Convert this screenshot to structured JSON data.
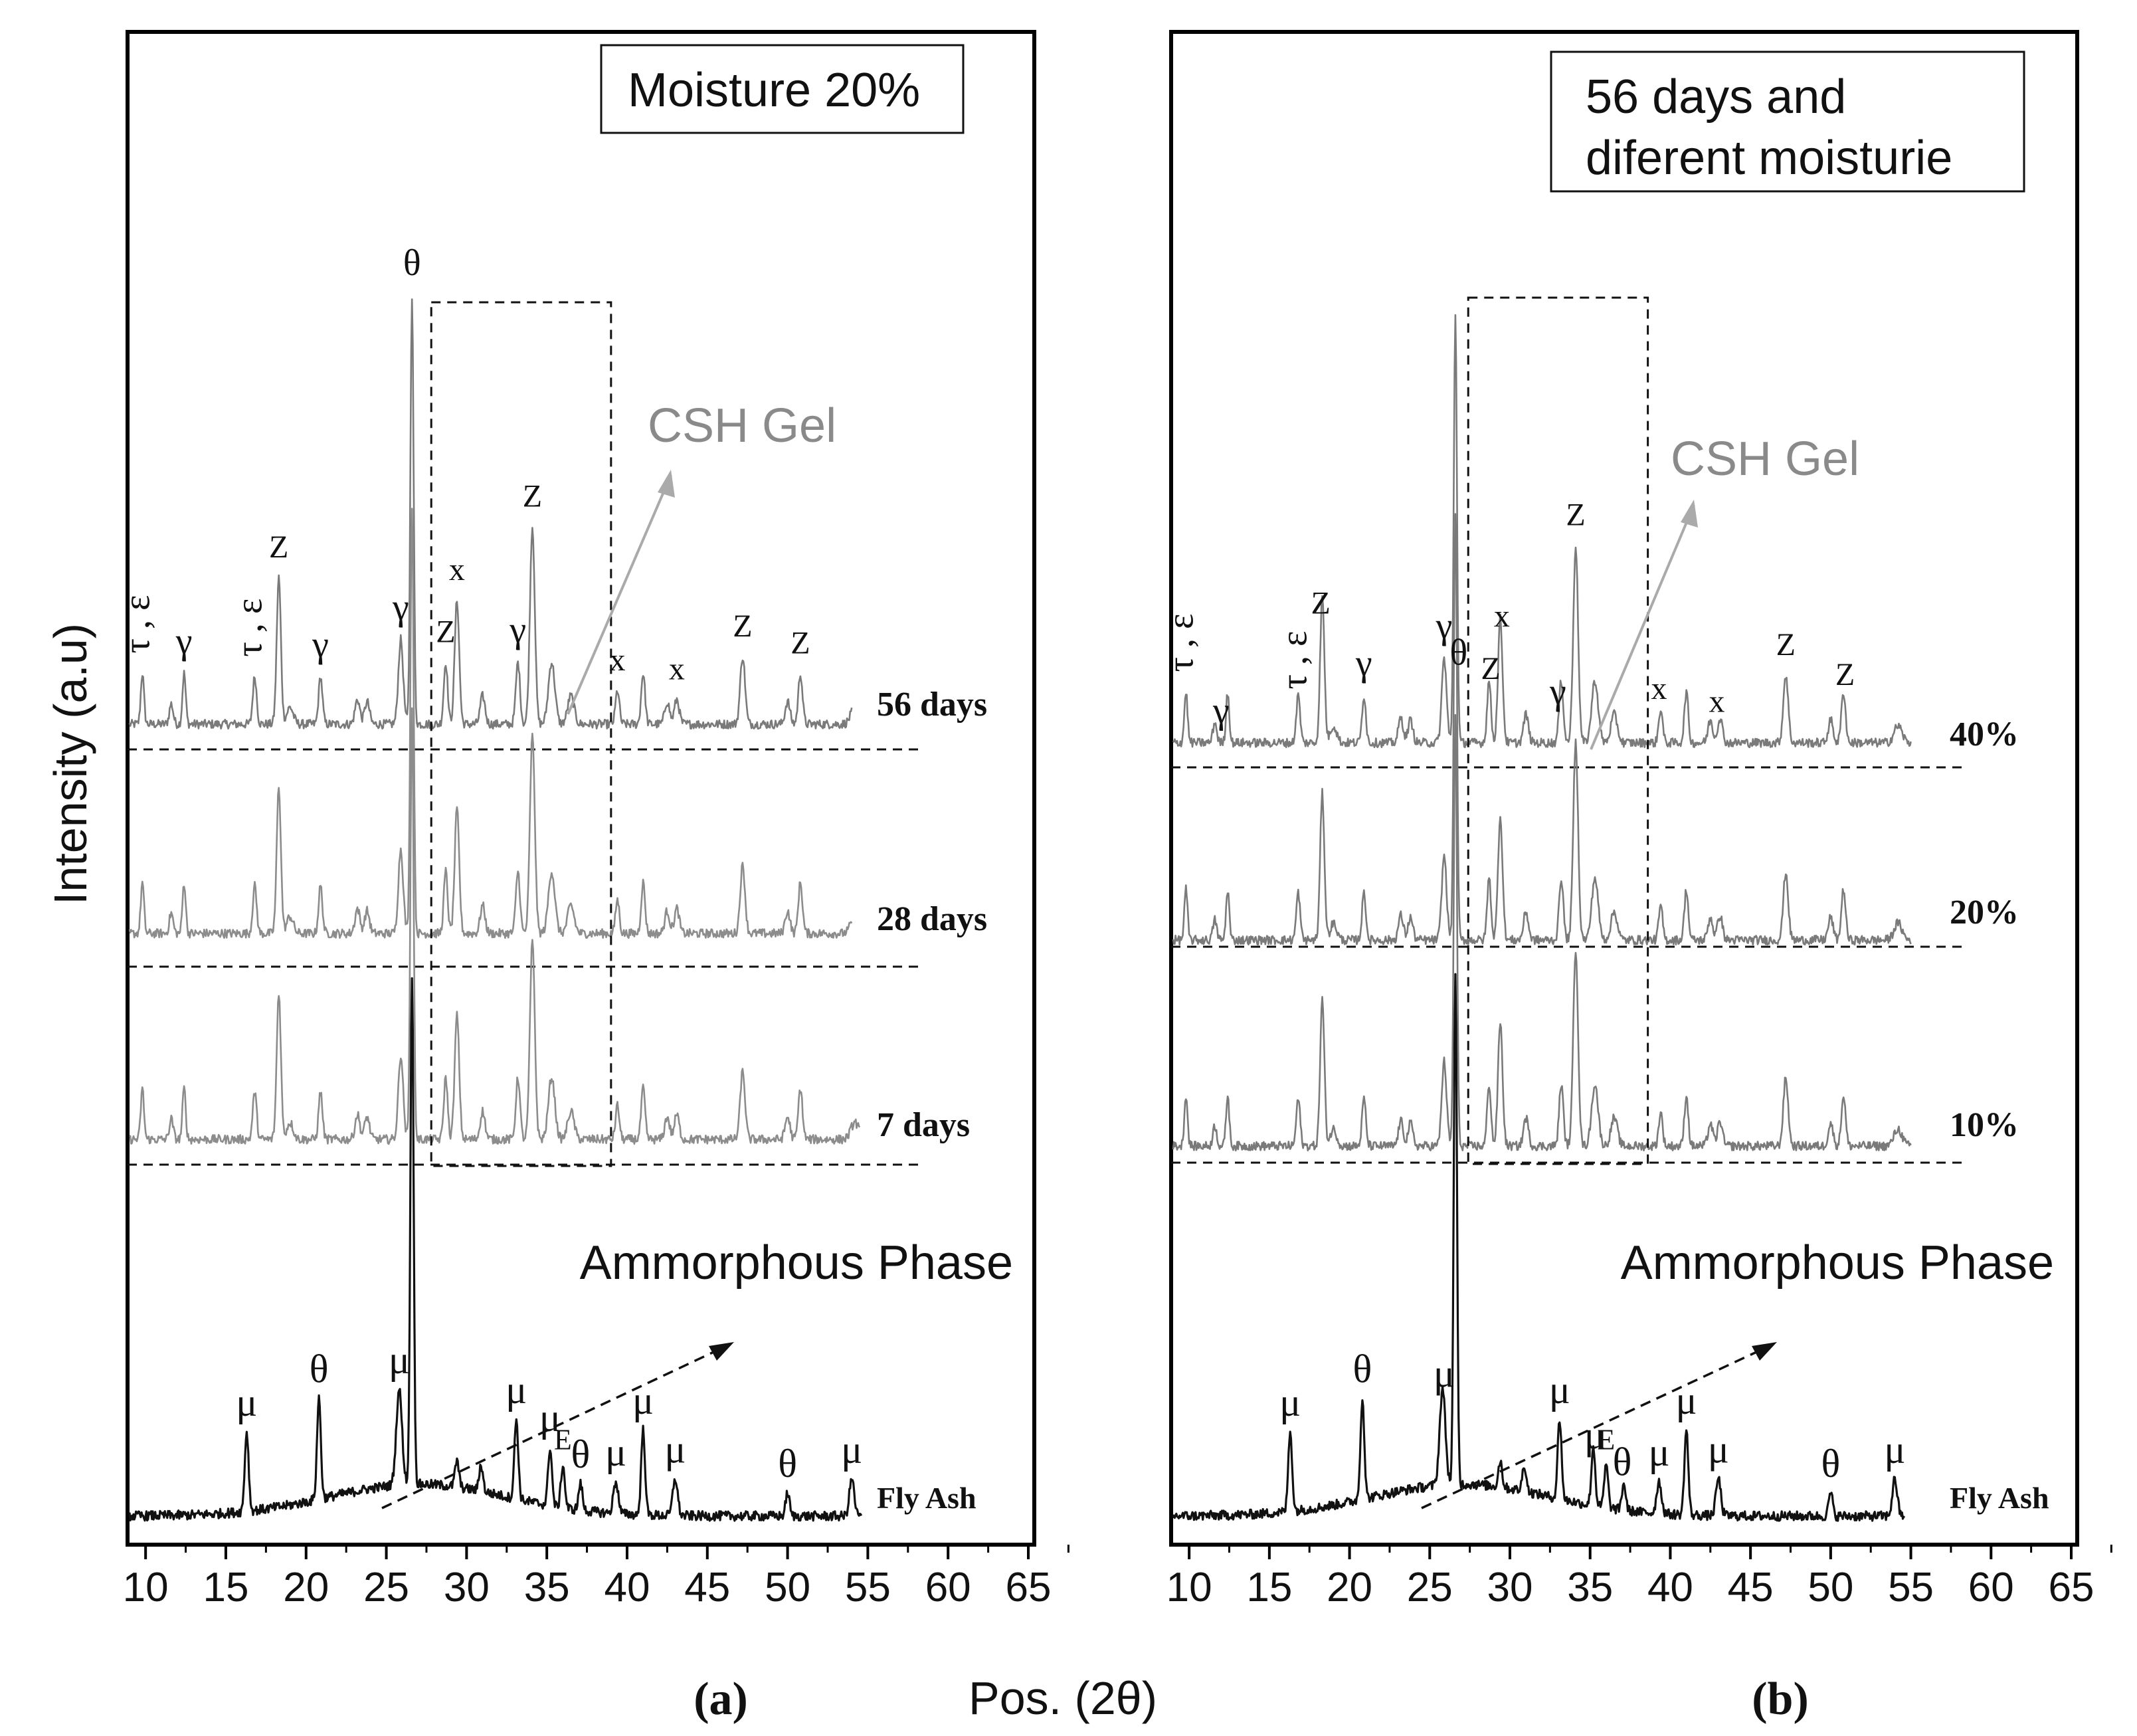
{
  "figure": {
    "ylabel": "Intensity (a.u)",
    "xlabel": "Pos. (2θ)"
  },
  "chart_data": [
    {
      "type": "line",
      "panel_label": "(a)",
      "legend_box": [
        "Moisture 20%"
      ],
      "xlim": [
        9,
        65
      ],
      "xticks": [
        10,
        15,
        20,
        25,
        30,
        35,
        40,
        45,
        50,
        55,
        60,
        65
      ],
      "xlabel": "Pos. (2θ)",
      "ylabel": "Intensity (a.u)",
      "series": [
        {
          "name": "56 days",
          "color": "#7a7a7a"
        },
        {
          "name": "28 days",
          "color": "#8c8c8c"
        },
        {
          "name": "7 days",
          "color": "#8c8c8c"
        },
        {
          "name": "Fly Ash",
          "color": "#111111"
        }
      ],
      "annotations": {
        "csh_label": "CSH Gel",
        "amorphous_label": "Ammorphous Phase",
        "csh_region_x": [
          27.8,
          39.0
        ],
        "top_peaks": [
          {
            "x": 9.8,
            "label": "τ , ε"
          },
          {
            "x": 12.4,
            "label": "γ"
          },
          {
            "x": 16.8,
            "label": "τ , ε"
          },
          {
            "x": 18.3,
            "label": "Z"
          },
          {
            "x": 20.9,
            "label": "γ"
          },
          {
            "x": 25.9,
            "label": "γ"
          },
          {
            "x": 26.6,
            "label": "θ"
          },
          {
            "x": 28.7,
            "label": "Z"
          },
          {
            "x": 29.4,
            "label": "x"
          },
          {
            "x": 33.2,
            "label": "γ"
          },
          {
            "x": 34.1,
            "label": "Z"
          },
          {
            "x": 39.4,
            "label": "x"
          },
          {
            "x": 43.1,
            "label": "x"
          },
          {
            "x": 47.2,
            "label": "Z"
          },
          {
            "x": 50.8,
            "label": "Z"
          }
        ],
        "fly_ash_peaks": [
          {
            "x": 16.3,
            "label": "μ"
          },
          {
            "x": 20.8,
            "label": "θ"
          },
          {
            "x": 25.8,
            "label": "μ"
          },
          {
            "x": 33.1,
            "label": "μ"
          },
          {
            "x": 35.2,
            "label": "μ"
          },
          {
            "x": 36.0,
            "label": "E"
          },
          {
            "x": 37.1,
            "label": "θ"
          },
          {
            "x": 39.3,
            "label": "μ"
          },
          {
            "x": 41.0,
            "label": "μ"
          },
          {
            "x": 43.0,
            "label": "μ"
          },
          {
            "x": 50.0,
            "label": "θ"
          },
          {
            "x": 54.0,
            "label": "μ"
          }
        ]
      }
    },
    {
      "type": "line",
      "panel_label": "(b)",
      "legend_box": [
        "56 days and",
        "diferent  moisturie"
      ],
      "xlim": [
        9,
        65
      ],
      "xticks": [
        10,
        15,
        20,
        25,
        30,
        35,
        40,
        45,
        50,
        55,
        60,
        65
      ],
      "xlabel": "Pos. (2θ)",
      "ylabel": "Intensity (a.u)",
      "series": [
        {
          "name": "40%",
          "color": "#7a7a7a"
        },
        {
          "name": "20%",
          "color": "#7a7a7a"
        },
        {
          "name": "10%",
          "color": "#7a7a7a"
        },
        {
          "name": "Fly Ash",
          "color": "#111111"
        }
      ],
      "annotations": {
        "csh_label": "CSH Gel",
        "amorphous_label": "Ammorphous Phase",
        "csh_region_x": [
          27.4,
          38.6
        ],
        "top_peaks": [
          {
            "x": 9.8,
            "label": "τ , ε"
          },
          {
            "x": 12.0,
            "label": "γ"
          },
          {
            "x": 16.9,
            "label": "τ , ε"
          },
          {
            "x": 18.2,
            "label": "Z"
          },
          {
            "x": 20.9,
            "label": "γ"
          },
          {
            "x": 25.9,
            "label": "γ"
          },
          {
            "x": 26.8,
            "label": "θ"
          },
          {
            "x": 28.8,
            "label": "Z"
          },
          {
            "x": 29.5,
            "label": "x"
          },
          {
            "x": 33.0,
            "label": "γ"
          },
          {
            "x": 34.1,
            "label": "Z"
          },
          {
            "x": 39.3,
            "label": "x"
          },
          {
            "x": 42.9,
            "label": "x"
          },
          {
            "x": 47.2,
            "label": "Z"
          },
          {
            "x": 50.9,
            "label": "Z"
          }
        ],
        "fly_ash_peaks": [
          {
            "x": 16.3,
            "label": "μ"
          },
          {
            "x": 20.8,
            "label": "θ"
          },
          {
            "x": 25.9,
            "label": "μ"
          },
          {
            "x": 33.1,
            "label": "μ"
          },
          {
            "x": 35.3,
            "label": "μ"
          },
          {
            "x": 36.0,
            "label": "E"
          },
          {
            "x": 37.0,
            "label": "θ"
          },
          {
            "x": 39.3,
            "label": "μ"
          },
          {
            "x": 41.0,
            "label": "μ"
          },
          {
            "x": 43.0,
            "label": "μ"
          },
          {
            "x": 50.0,
            "label": "θ"
          },
          {
            "x": 54.0,
            "label": "μ"
          }
        ]
      }
    }
  ]
}
